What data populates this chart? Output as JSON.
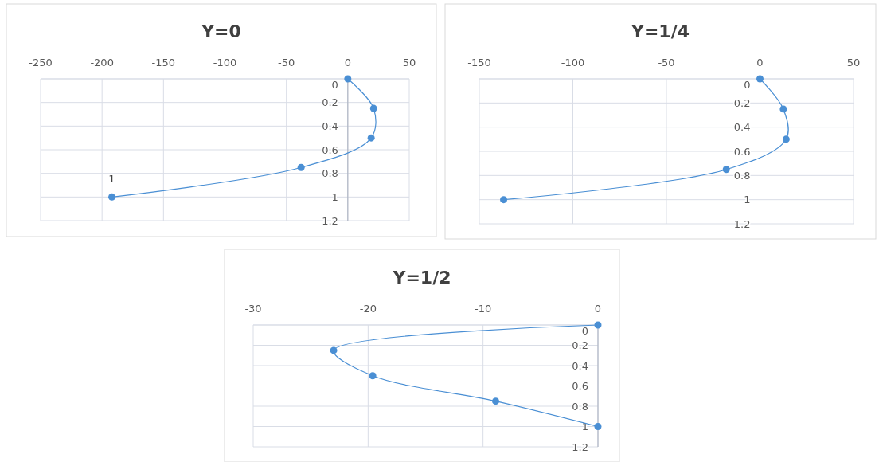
{
  "chart_data": [
    {
      "type": "line",
      "title": "Y=0",
      "x": [
        0,
        21,
        19,
        -38,
        -192
      ],
      "values": [
        0,
        0.25,
        0.5,
        0.75,
        1
      ],
      "color": "#4a8fd4",
      "marker": "circle",
      "xlim": [
        -250,
        50
      ],
      "xticks": [
        -250,
        -200,
        -150,
        -100,
        -50,
        0,
        50
      ],
      "ylim": [
        1.2,
        0
      ],
      "yticks": [
        0,
        0.2,
        0.4,
        0.6,
        0.8,
        1,
        1.2
      ],
      "grid": true,
      "annotations": [
        {
          "text": "1",
          "x": -192,
          "y": 1
        }
      ]
    },
    {
      "type": "line",
      "title": "Y=1/4",
      "x": [
        0,
        12.5,
        14,
        -18,
        -137
      ],
      "values": [
        0,
        0.25,
        0.5,
        0.75,
        1
      ],
      "color": "#4a8fd4",
      "marker": "circle",
      "xlim": [
        -150,
        50
      ],
      "xticks": [
        -150,
        -100,
        -50,
        0,
        50
      ],
      "ylim": [
        1.2,
        0
      ],
      "yticks": [
        0,
        0.2,
        0.4,
        0.6,
        0.8,
        1,
        1.2
      ],
      "grid": true
    },
    {
      "type": "line",
      "title": "Y=1/2",
      "x": [
        0,
        -23,
        -19.6,
        -8.9,
        0
      ],
      "values": [
        0,
        0.25,
        0.5,
        0.75,
        1
      ],
      "color": "#4a8fd4",
      "marker": "circle",
      "xlim": [
        -30,
        0
      ],
      "xticks": [
        -30,
        -20,
        -10,
        0
      ],
      "ylim": [
        1.2,
        0
      ],
      "yticks": [
        0,
        0.2,
        0.4,
        0.6,
        0.8,
        1,
        1.2
      ],
      "grid": true
    }
  ]
}
